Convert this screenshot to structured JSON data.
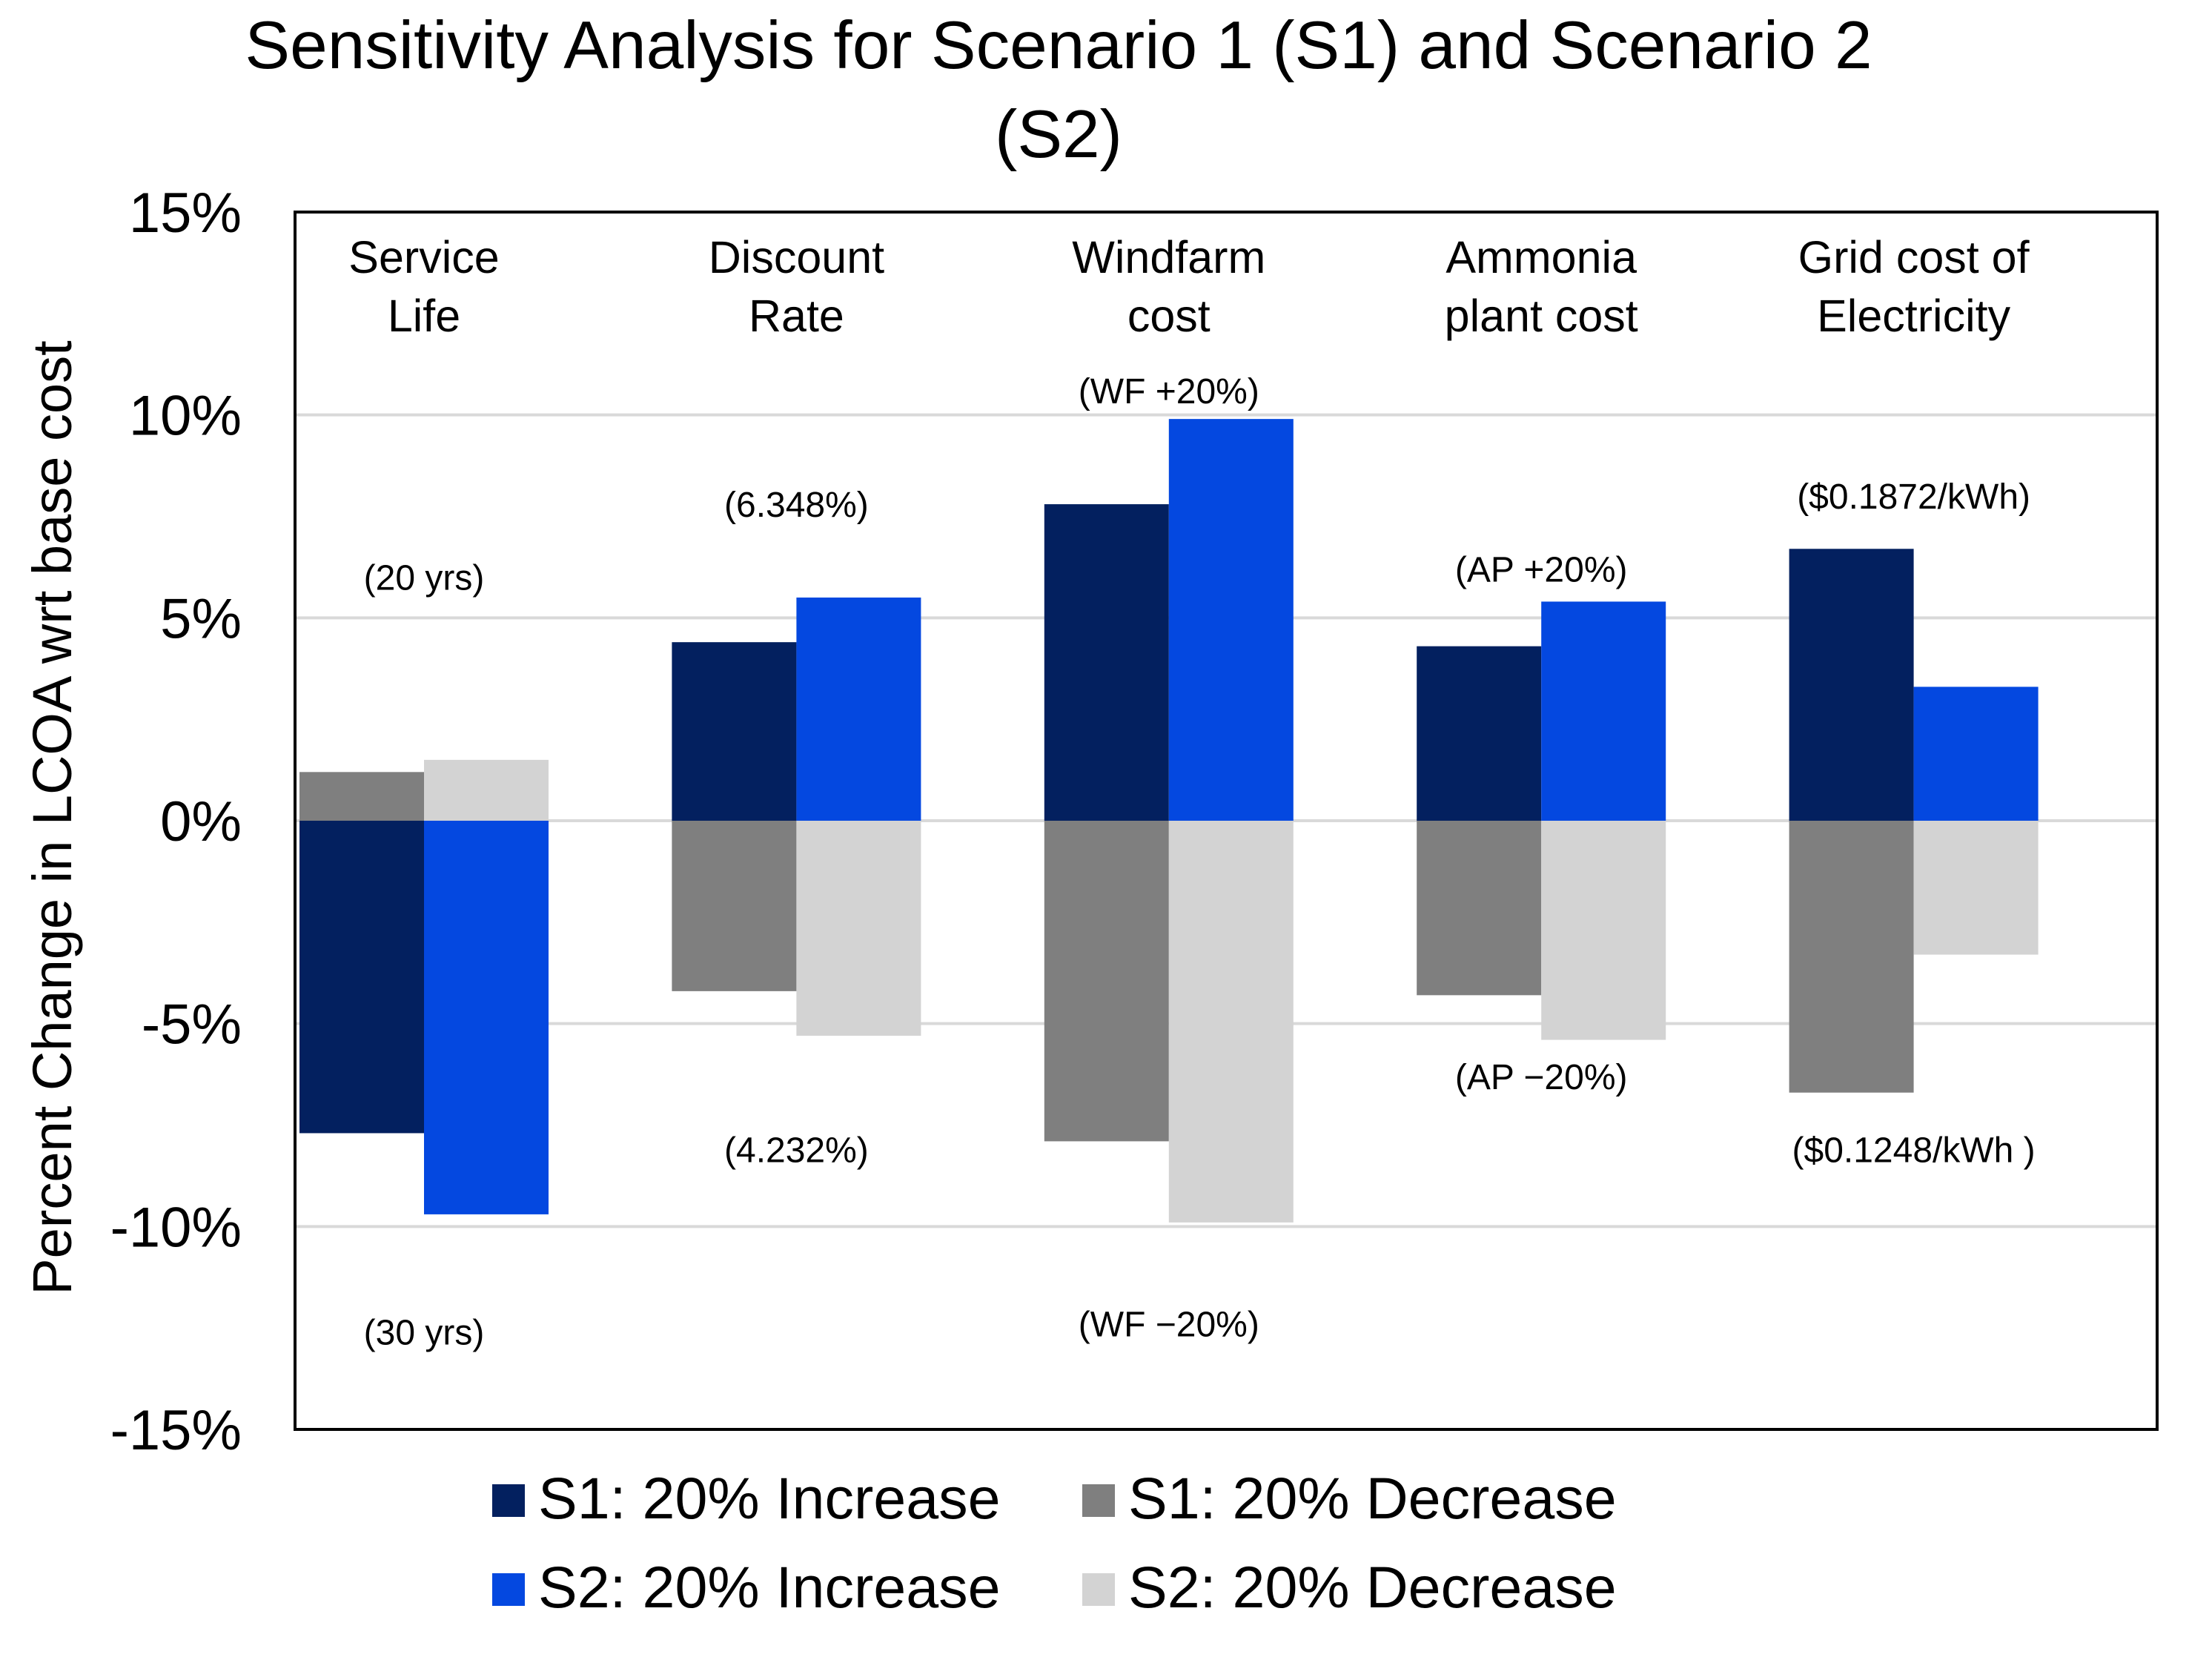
{
  "chart_data": {
    "type": "bar",
    "title_lines": [
      "Sensitivity Analysis for Scenario 1 (S1) and Scenario 2",
      "(S2)"
    ],
    "ylabel": "Percent Change in LCOA wrt base cost",
    "xlabel": "",
    "ylim": [
      -15,
      15
    ],
    "yticks": [
      15,
      10,
      5,
      0,
      -5,
      -10,
      -15
    ],
    "ytick_labels": [
      "15%",
      "10%",
      "5%",
      "0%",
      "-5%",
      "-10%",
      "-15%"
    ],
    "grid": true,
    "legend_position": "bottom",
    "categories": [
      {
        "id": "service-life",
        "lines": [
          "Service",
          "Life"
        ]
      },
      {
        "id": "discount-rate",
        "lines": [
          "Discount",
          "Rate"
        ]
      },
      {
        "id": "windfarm-cost",
        "lines": [
          "Windfarm",
          "cost"
        ]
      },
      {
        "id": "ammonia-plant-cost",
        "lines": [
          "Ammonia",
          "plant cost"
        ]
      },
      {
        "id": "grid-cost",
        "lines": [
          "Grid cost of",
          "Electricity"
        ]
      }
    ],
    "series": [
      {
        "id": "s1-inc",
        "name": "S1: 20% Increase",
        "color": "#03205F",
        "values": [
          -7.7,
          4.4,
          7.8,
          4.3,
          6.7
        ]
      },
      {
        "id": "s2-inc",
        "name": "S2: 20% Increase",
        "color": "#0448E0",
        "values": [
          -9.7,
          5.5,
          9.9,
          5.4,
          3.3
        ]
      },
      {
        "id": "s1-dec",
        "name": "S1: 20% Decrease",
        "color": "#7F7F7F",
        "values": [
          1.2,
          -4.2,
          -7.9,
          -4.3,
          -6.7
        ]
      },
      {
        "id": "s2-dec",
        "name": "S2: 20% Decrease",
        "color": "#D3D3D3",
        "values": [
          1.5,
          -5.3,
          -9.9,
          -5.4,
          -3.3
        ]
      }
    ],
    "legend_order": [
      "s1-inc",
      "s1-dec",
      "s2-inc",
      "s2-dec"
    ],
    "annotations": [
      {
        "id": "service-life-upper",
        "text": "(20 yrs)",
        "category": 0,
        "y": 6.0
      },
      {
        "id": "service-life-lower",
        "text": "(30 yrs)",
        "category": 0,
        "y": -12.6
      },
      {
        "id": "discount-rate-upper",
        "text": "(6.348%)",
        "category": 1,
        "y": 7.8
      },
      {
        "id": "discount-rate-lower",
        "text": "(4.232%)",
        "category": 1,
        "y": -8.1
      },
      {
        "id": "windfarm-upper",
        "text": "(WF +20%)",
        "category": 2,
        "y": 10.6
      },
      {
        "id": "windfarm-lower",
        "text": "(WF −20%)",
        "category": 2,
        "y": -12.4
      },
      {
        "id": "ammonia-upper",
        "text": "(AP +20%)",
        "category": 3,
        "y": 6.2
      },
      {
        "id": "ammonia-lower",
        "text": "(AP −20%)",
        "category": 3,
        "y": -6.3
      },
      {
        "id": "grid-upper",
        "text": "($0.1872/kWh)",
        "category": 4,
        "y": 8.0
      },
      {
        "id": "grid-lower",
        "text": "($0.1248/kWh )",
        "category": 4,
        "y": -8.1
      }
    ]
  }
}
